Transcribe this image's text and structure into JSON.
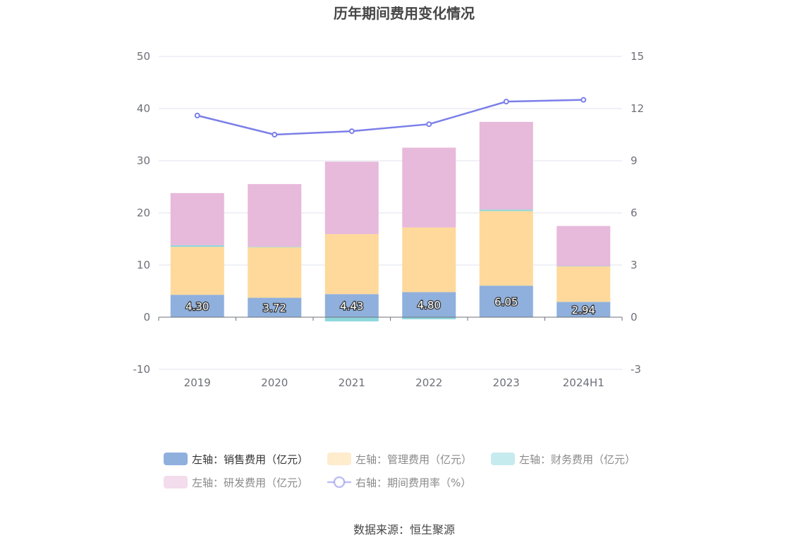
{
  "chart_data": {
    "type": "bar",
    "title": "历年期间费用变化情况",
    "categories": [
      "2019",
      "2020",
      "2021",
      "2022",
      "2023",
      "2024H1"
    ],
    "left_axis": {
      "min": -10,
      "max": 50,
      "ticks": [
        "-10",
        "0",
        "10",
        "20",
        "30",
        "40",
        "50"
      ]
    },
    "right_axis": {
      "min": -3,
      "max": 15,
      "ticks": [
        "-3",
        "0",
        "3",
        "6",
        "9",
        "12",
        "15"
      ]
    },
    "stacked_series": [
      {
        "name": "左轴：销售费用（亿元）",
        "color": "#8fb0dd",
        "values": [
          4.3,
          3.72,
          4.43,
          4.8,
          6.05,
          2.94
        ],
        "labels": [
          "4.30",
          "3.72",
          "4.43",
          "4.80",
          "6.05",
          "2.94"
        ]
      },
      {
        "name": "左轴：管理费用（亿元）",
        "color": "#fed99b",
        "values": [
          9.2,
          9.7,
          11.5,
          12.4,
          14.3,
          6.8
        ]
      },
      {
        "name": "左轴：财务费用（亿元）",
        "color": "#8dd7dd",
        "values": [
          0.3,
          0.1,
          -0.8,
          -0.4,
          0.3,
          0.05
        ]
      },
      {
        "name": "左轴：研发费用（亿元）",
        "color": "#e7b9da",
        "values": [
          10.0,
          12.0,
          13.9,
          15.3,
          16.8,
          7.7
        ]
      }
    ],
    "line_series": {
      "name": "右轴：期间费用率（%）",
      "color": "#7b7fe8",
      "values": [
        11.6,
        10.5,
        10.7,
        11.1,
        12.4,
        12.5
      ]
    },
    "grid": true,
    "legend_position": "bottom"
  },
  "source_text": "数据来源：恒生聚源"
}
